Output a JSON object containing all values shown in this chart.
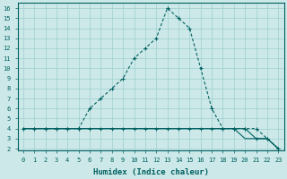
{
  "xlabel": "Humidex (Indice chaleur)",
  "xlim": [
    0,
    23
  ],
  "ylim": [
    2,
    16
  ],
  "xticks": [
    0,
    1,
    2,
    3,
    4,
    5,
    6,
    7,
    8,
    9,
    10,
    11,
    12,
    13,
    14,
    15,
    16,
    17,
    18,
    19,
    20,
    21,
    22,
    23
  ],
  "yticks": [
    2,
    3,
    4,
    5,
    6,
    7,
    8,
    9,
    10,
    11,
    12,
    13,
    14,
    15,
    16
  ],
  "bg_color": "#cce8e8",
  "grid_color": "#9fcfcf",
  "line_color": "#006060",
  "hours": [
    0,
    1,
    2,
    3,
    4,
    5,
    6,
    7,
    8,
    9,
    10,
    11,
    12,
    13,
    14,
    15,
    16,
    17,
    18,
    19,
    20,
    21,
    22,
    23
  ],
  "line_max": [
    4,
    4,
    4,
    4,
    4,
    4,
    6,
    7,
    8,
    9,
    11,
    12,
    13,
    16,
    15,
    14,
    10,
    6,
    4,
    4,
    4,
    4,
    3,
    2
  ],
  "line_mean": [
    4,
    4,
    4,
    4,
    4,
    4,
    4,
    4,
    4,
    4,
    4,
    4,
    4,
    4,
    4,
    4,
    4,
    4,
    4,
    4,
    4,
    3,
    3,
    2
  ],
  "line_min": [
    4,
    4,
    4,
    4,
    4,
    4,
    4,
    4,
    4,
    4,
    4,
    4,
    4,
    4,
    4,
    4,
    4,
    4,
    4,
    4,
    3,
    3,
    3,
    2
  ]
}
